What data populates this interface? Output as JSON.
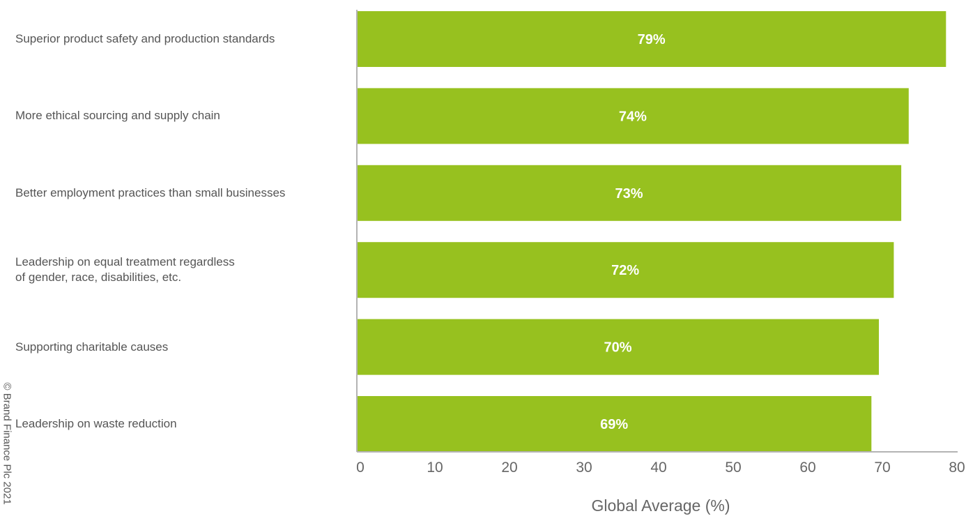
{
  "chart_data": {
    "type": "bar",
    "orientation": "horizontal",
    "categories": [
      "Superior product safety and production standards",
      "More ethical sourcing and supply chain",
      "Better employment practices than small businesses",
      "Leadership on equal treatment regardless\nof gender, race, disabilities, etc.",
      "Supporting charitable causes",
      "Leadership on waste reduction"
    ],
    "values": [
      79,
      74,
      73,
      72,
      70,
      69
    ],
    "value_labels": [
      "79%",
      "74%",
      "73%",
      "72%",
      "70%",
      "69%"
    ],
    "xlabel": "Global Average (%)",
    "xlim": [
      0,
      80
    ],
    "xticks": [
      "0",
      "10",
      "20",
      "30",
      "40",
      "50",
      "60",
      "70",
      "80"
    ],
    "grid": false,
    "bar_color": "#97c11f",
    "watermark": "© Brand Finance Plc 2021"
  }
}
